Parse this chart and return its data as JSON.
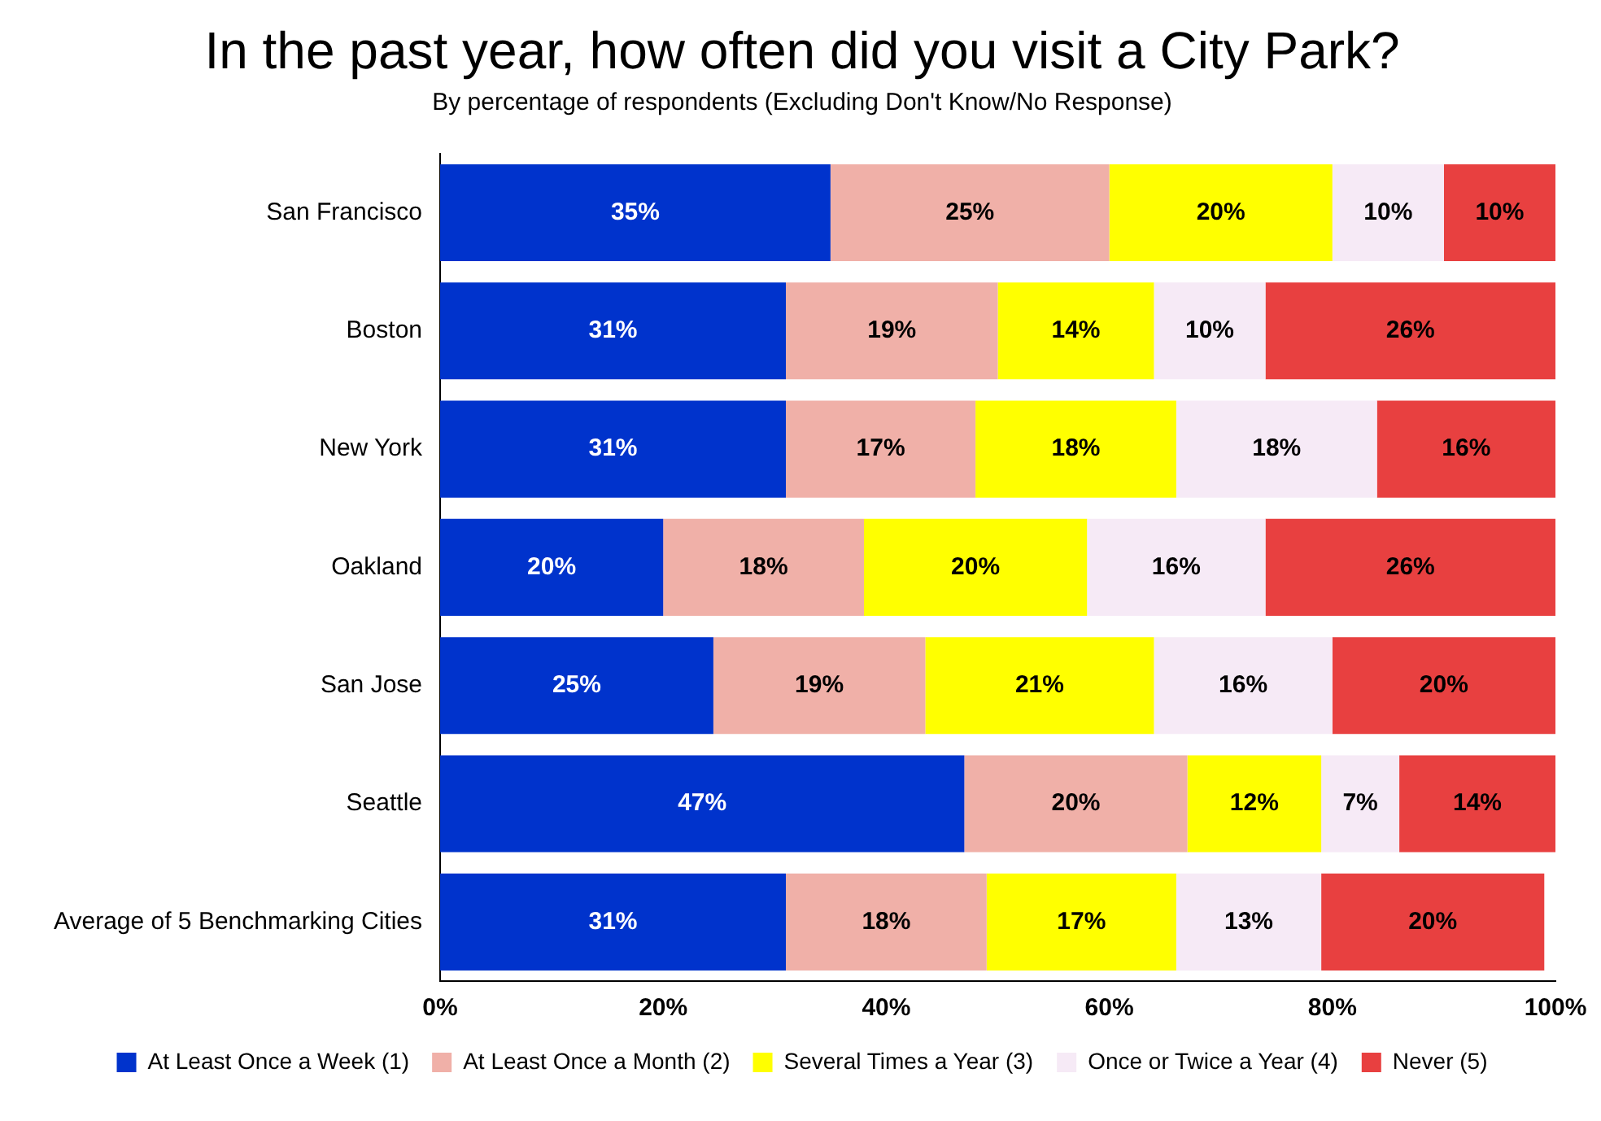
{
  "chart_data": {
    "type": "bar",
    "orientation": "horizontal",
    "stacked": true,
    "title": "In the past year, how often did you visit a City Park?",
    "subtitle": "By percentage of respondents (Excluding Don't Know/No Response)",
    "categories": [
      "San Francisco",
      "Boston",
      "New York",
      "Oakland",
      "San Jose",
      "Seattle",
      "Average of 5 Benchmarking Cities"
    ],
    "series": [
      {
        "name": "At Least Once a Week (1)",
        "color": "#0033cc",
        "values": [
          35,
          31,
          31,
          20,
          24.5,
          47,
          31
        ],
        "value_labels": [
          "35%",
          "31%",
          "31%",
          "20%",
          "25%",
          "47%",
          "31%"
        ]
      },
      {
        "name": "At Least Once a Month (2)",
        "color": "#f0b0a8",
        "values": [
          25,
          19,
          17,
          18,
          19,
          20,
          18
        ],
        "value_labels": [
          "25%",
          "19%",
          "17%",
          "18%",
          "19%",
          "20%",
          "18%"
        ]
      },
      {
        "name": "Several Times a Year (3)",
        "color": "#ffff00",
        "values": [
          20,
          14,
          18,
          20,
          20.5,
          12,
          17
        ],
        "value_labels": [
          "20%",
          "14%",
          "18%",
          "20%",
          "21%",
          "12%",
          "17%"
        ]
      },
      {
        "name": "Once or Twice a Year (4)",
        "color": "#f6eaf6",
        "values": [
          10,
          10,
          18,
          16,
          16,
          7,
          13
        ],
        "value_labels": [
          "10%",
          "10%",
          "18%",
          "16%",
          "16%",
          "7%",
          "13%"
        ]
      },
      {
        "name": "Never (5)",
        "color": "#e84040",
        "values": [
          10,
          26,
          16,
          26,
          20,
          14,
          20
        ],
        "value_labels": [
          "10%",
          "26%",
          "16%",
          "26%",
          "20%",
          "14%",
          "20%"
        ]
      }
    ],
    "xlim": [
      0,
      100
    ],
    "xticks": [
      {
        "value": 0,
        "label": "0%"
      },
      {
        "value": 20,
        "label": "20%"
      },
      {
        "value": 40,
        "label": "40%"
      },
      {
        "value": 60,
        "label": "60%"
      },
      {
        "value": 80,
        "label": "80%"
      },
      {
        "value": 100,
        "label": "100%"
      }
    ],
    "grid": false,
    "legend": "bottom"
  }
}
